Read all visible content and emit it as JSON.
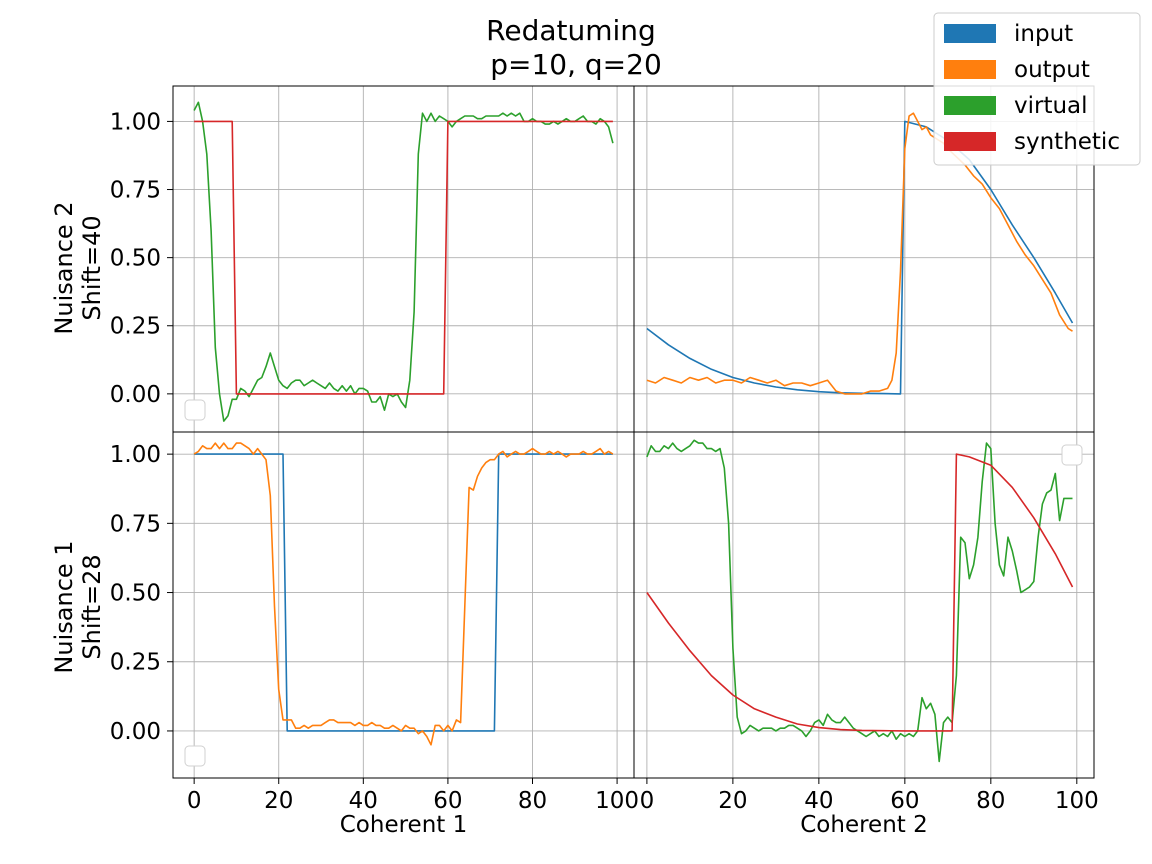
{
  "title_line1": "Redatuming",
  "title_line2": "p=10, q=20",
  "colors": {
    "input": "#1f77b4",
    "output": "#ff7f0e",
    "virtual": "#2ca02c",
    "synthetic": "#d62728"
  },
  "legend": [
    "input",
    "output",
    "virtual",
    "synthetic"
  ],
  "row_labels": [
    {
      "line1": "Nuisance 2",
      "line2": "Shift=40"
    },
    {
      "line1": "Nuisance 1",
      "line2": "Shift=28"
    }
  ],
  "col_labels": [
    "Coherent 1",
    "Coherent 2"
  ],
  "chart_data": [
    {
      "type": "line",
      "panel": "top-left",
      "xlim": [
        -5,
        104
      ],
      "ylim": [
        -0.14,
        1.13
      ],
      "xticks": [
        0,
        20,
        40,
        60,
        80,
        100
      ],
      "yticks": [
        0.0,
        0.25,
        0.5,
        0.75,
        1.0
      ],
      "ytick_labels": [
        "0.00",
        "0.25",
        "0.50",
        "0.75",
        "1.00"
      ],
      "grid": true,
      "series": [
        {
          "name": "virtual",
          "color": "#2ca02c",
          "x": [
            0,
            1,
            2,
            3,
            4,
            5,
            6,
            7,
            8,
            9,
            10,
            11,
            12,
            13,
            14,
            15,
            16,
            17,
            18,
            19,
            20,
            21,
            22,
            23,
            24,
            25,
            26,
            27,
            28,
            29,
            30,
            31,
            32,
            33,
            34,
            35,
            36,
            37,
            38,
            39,
            40,
            41,
            42,
            43,
            44,
            45,
            46,
            47,
            48,
            49,
            50,
            51,
            52,
            53,
            54,
            55,
            56,
            57,
            58,
            59,
            60,
            61,
            62,
            63,
            64,
            65,
            66,
            67,
            68,
            69,
            70,
            71,
            72,
            73,
            74,
            75,
            76,
            77,
            78,
            79,
            80,
            81,
            82,
            83,
            84,
            85,
            86,
            87,
            88,
            89,
            90,
            91,
            92,
            93,
            94,
            95,
            96,
            97,
            98,
            99
          ],
          "y": [
            1.04,
            1.07,
            1.0,
            0.88,
            0.6,
            0.17,
            0.0,
            -0.1,
            -0.08,
            -0.02,
            -0.02,
            0.02,
            0.01,
            -0.01,
            0.02,
            0.05,
            0.06,
            0.1,
            0.15,
            0.1,
            0.05,
            0.03,
            0.02,
            0.04,
            0.05,
            0.05,
            0.03,
            0.04,
            0.05,
            0.04,
            0.03,
            0.02,
            0.04,
            0.02,
            0.01,
            0.03,
            0.01,
            0.03,
            0.0,
            0.02,
            0.02,
            0.01,
            -0.03,
            -0.03,
            -0.01,
            -0.06,
            0.0,
            -0.01,
            0.0,
            -0.03,
            -0.05,
            0.05,
            0.3,
            0.88,
            1.03,
            1.0,
            1.03,
            1.0,
            1.02,
            1.01,
            1.0,
            0.98,
            1.0,
            1.01,
            1.02,
            1.02,
            1.02,
            1.01,
            1.01,
            1.02,
            1.02,
            1.02,
            1.02,
            1.03,
            1.02,
            1.03,
            1.02,
            1.03,
            1.0,
            1.0,
            1.01,
            1.0,
            1.0,
            0.99,
            0.99,
            1.0,
            0.99,
            1.0,
            1.01,
            1.0,
            1.0,
            1.01,
            1.02,
            1.0,
            1.0,
            0.99,
            1.01,
            1.0,
            0.98,
            0.92
          ]
        },
        {
          "name": "synthetic",
          "color": "#d62728",
          "x": [
            0,
            9,
            10,
            59,
            60,
            99
          ],
          "y": [
            1.0,
            1.0,
            0.0,
            0.0,
            1.0,
            1.0
          ]
        }
      ]
    },
    {
      "type": "line",
      "panel": "top-right",
      "xlim": [
        -3,
        104
      ],
      "ylim": [
        -0.14,
        1.13
      ],
      "xticks": [
        0,
        20,
        40,
        60,
        80,
        100
      ],
      "yticks": [
        0.0,
        0.25,
        0.5,
        0.75,
        1.0
      ],
      "grid": true,
      "series": [
        {
          "name": "input",
          "color": "#1f77b4",
          "x": [
            0,
            5,
            10,
            15,
            20,
            25,
            30,
            35,
            40,
            45,
            50,
            55,
            59,
            60,
            65,
            70,
            75,
            80,
            85,
            90,
            95,
            99
          ],
          "y": [
            0.24,
            0.18,
            0.13,
            0.09,
            0.06,
            0.04,
            0.025,
            0.015,
            0.008,
            0.004,
            0.002,
            0.001,
            0.0,
            1.0,
            0.98,
            0.93,
            0.86,
            0.75,
            0.62,
            0.5,
            0.37,
            0.26
          ]
        },
        {
          "name": "output",
          "color": "#ff7f0e",
          "x": [
            0,
            2,
            4,
            6,
            8,
            10,
            12,
            14,
            16,
            18,
            20,
            22,
            24,
            26,
            28,
            30,
            32,
            34,
            36,
            38,
            40,
            42,
            44,
            46,
            48,
            50,
            52,
            54,
            56,
            57,
            58,
            59,
            60,
            61,
            62,
            63,
            64,
            65,
            66,
            67,
            68,
            69,
            70,
            72,
            74,
            76,
            78,
            80,
            82,
            84,
            86,
            88,
            90,
            92,
            94,
            96,
            98,
            99
          ],
          "y": [
            0.05,
            0.04,
            0.06,
            0.05,
            0.04,
            0.06,
            0.05,
            0.06,
            0.04,
            0.05,
            0.05,
            0.04,
            0.06,
            0.05,
            0.04,
            0.05,
            0.03,
            0.04,
            0.04,
            0.03,
            0.04,
            0.05,
            0.01,
            0.0,
            0.0,
            0.0,
            0.01,
            0.01,
            0.02,
            0.05,
            0.15,
            0.45,
            0.9,
            1.02,
            1.03,
            1.0,
            0.97,
            0.98,
            0.95,
            0.94,
            0.93,
            0.92,
            0.9,
            0.87,
            0.84,
            0.8,
            0.77,
            0.72,
            0.68,
            0.62,
            0.56,
            0.51,
            0.47,
            0.42,
            0.37,
            0.29,
            0.24,
            0.23
          ]
        }
      ]
    },
    {
      "type": "line",
      "panel": "bottom-left",
      "xlim": [
        -5,
        104
      ],
      "ylim": [
        -0.17,
        1.08
      ],
      "xticks": [
        0,
        20,
        40,
        60,
        80,
        100
      ],
      "yticks": [
        0.0,
        0.25,
        0.5,
        0.75,
        1.0
      ],
      "ytick_labels": [
        "0.00",
        "0.25",
        "0.50",
        "0.75",
        "1.00"
      ],
      "xlabel": "Coherent 1",
      "grid": true,
      "series": [
        {
          "name": "input",
          "color": "#1f77b4",
          "x": [
            0,
            21,
            22,
            71,
            72,
            99
          ],
          "y": [
            1.0,
            1.0,
            0.0,
            0.0,
            1.0,
            1.0
          ]
        },
        {
          "name": "output",
          "color": "#ff7f0e",
          "x": [
            0,
            1,
            2,
            3,
            4,
            5,
            6,
            7,
            8,
            9,
            10,
            11,
            12,
            13,
            14,
            15,
            16,
            17,
            18,
            19,
            20,
            21,
            22,
            23,
            24,
            25,
            26,
            27,
            28,
            29,
            30,
            31,
            32,
            33,
            34,
            35,
            36,
            37,
            38,
            39,
            40,
            41,
            42,
            43,
            44,
            45,
            46,
            47,
            48,
            49,
            50,
            51,
            52,
            53,
            54,
            55,
            56,
            57,
            58,
            59,
            60,
            61,
            62,
            63,
            64,
            65,
            66,
            67,
            68,
            69,
            70,
            71,
            72,
            73,
            74,
            75,
            76,
            77,
            78,
            79,
            80,
            81,
            82,
            83,
            84,
            85,
            86,
            87,
            88,
            89,
            90,
            91,
            92,
            93,
            94,
            95,
            96,
            97,
            98,
            99
          ],
          "y": [
            1.0,
            1.01,
            1.03,
            1.02,
            1.02,
            1.04,
            1.02,
            1.04,
            1.02,
            1.02,
            1.04,
            1.04,
            1.03,
            1.02,
            1.0,
            1.02,
            1.0,
            0.98,
            0.85,
            0.45,
            0.15,
            0.04,
            0.04,
            0.04,
            0.01,
            0.01,
            0.02,
            0.01,
            0.02,
            0.02,
            0.02,
            0.03,
            0.04,
            0.04,
            0.03,
            0.03,
            0.03,
            0.03,
            0.02,
            0.03,
            0.02,
            0.02,
            0.03,
            0.02,
            0.02,
            0.01,
            0.01,
            0.02,
            0.01,
            0.0,
            0.02,
            0.01,
            0.01,
            -0.01,
            0.0,
            -0.02,
            -0.05,
            0.02,
            0.02,
            0.0,
            0.02,
            0.0,
            0.04,
            0.03,
            0.45,
            0.88,
            0.87,
            0.92,
            0.95,
            0.97,
            0.98,
            0.98,
            1.0,
            1.01,
            0.99,
            1.0,
            1.01,
            1.0,
            1.0,
            1.01,
            1.02,
            1.01,
            1.0,
            1.0,
            1.01,
            1.0,
            1.01,
            1.0,
            0.99,
            1.0,
            1.0,
            1.0,
            1.01,
            1.0,
            1.0,
            1.01,
            1.02,
            1.0,
            1.01,
            1.0
          ]
        }
      ]
    },
    {
      "type": "line",
      "panel": "bottom-right",
      "xlim": [
        -3,
        104
      ],
      "ylim": [
        -0.17,
        1.08
      ],
      "xticks": [
        0,
        20,
        40,
        60,
        80,
        100
      ],
      "yticks": [
        0.0,
        0.25,
        0.5,
        0.75,
        1.0
      ],
      "xlabel": "Coherent 2",
      "grid": true,
      "series": [
        {
          "name": "virtual",
          "color": "#2ca02c",
          "x": [
            0,
            1,
            2,
            3,
            4,
            5,
            6,
            7,
            8,
            9,
            10,
            11,
            12,
            13,
            14,
            15,
            16,
            17,
            18,
            19,
            20,
            21,
            22,
            23,
            24,
            25,
            26,
            27,
            28,
            29,
            30,
            31,
            32,
            33,
            34,
            35,
            36,
            37,
            38,
            39,
            40,
            41,
            42,
            43,
            44,
            45,
            46,
            47,
            48,
            49,
            50,
            51,
            52,
            53,
            54,
            55,
            56,
            57,
            58,
            59,
            60,
            61,
            62,
            63,
            64,
            65,
            66,
            67,
            68,
            69,
            70,
            71,
            72,
            73,
            74,
            75,
            76,
            77,
            78,
            79,
            80,
            81,
            82,
            83,
            84,
            85,
            86,
            87,
            88,
            89,
            90,
            91,
            92,
            93,
            94,
            95,
            96,
            97,
            98,
            99
          ],
          "y": [
            0.99,
            1.03,
            1.01,
            1.01,
            1.03,
            1.02,
            1.04,
            1.02,
            1.01,
            1.02,
            1.03,
            1.05,
            1.04,
            1.04,
            1.02,
            1.02,
            1.01,
            1.02,
            0.95,
            0.75,
            0.3,
            0.05,
            -0.01,
            0.0,
            0.02,
            0.01,
            0.0,
            0.01,
            0.01,
            0.01,
            0.0,
            0.01,
            0.01,
            0.02,
            0.02,
            0.01,
            0.0,
            -0.02,
            0.0,
            0.03,
            0.04,
            0.02,
            0.06,
            0.04,
            0.03,
            0.03,
            0.05,
            0.03,
            0.01,
            0.0,
            -0.01,
            -0.02,
            -0.01,
            0.0,
            -0.02,
            -0.01,
            -0.02,
            0.0,
            -0.03,
            -0.01,
            -0.02,
            -0.01,
            -0.02,
            0.0,
            0.12,
            0.08,
            0.1,
            0.06,
            -0.11,
            0.03,
            0.05,
            0.03,
            0.2,
            0.7,
            0.68,
            0.55,
            0.6,
            0.7,
            0.9,
            1.04,
            1.02,
            0.75,
            0.6,
            0.56,
            0.7,
            0.65,
            0.58,
            0.5,
            0.51,
            0.52,
            0.54,
            0.7,
            0.82,
            0.86,
            0.87,
            0.93,
            0.76,
            0.84,
            0.84,
            0.84
          ]
        },
        {
          "name": "synthetic",
          "color": "#d62728",
          "x": [
            0,
            5,
            10,
            15,
            20,
            25,
            30,
            35,
            40,
            45,
            50,
            55,
            60,
            65,
            70,
            71,
            72,
            75,
            80,
            85,
            90,
            95,
            99
          ],
          "y": [
            0.5,
            0.39,
            0.29,
            0.2,
            0.13,
            0.08,
            0.05,
            0.025,
            0.012,
            0.005,
            0.002,
            0.001,
            0.0,
            0.0,
            0.0,
            0.0,
            1.0,
            0.99,
            0.96,
            0.88,
            0.77,
            0.64,
            0.52
          ]
        }
      ]
    }
  ]
}
